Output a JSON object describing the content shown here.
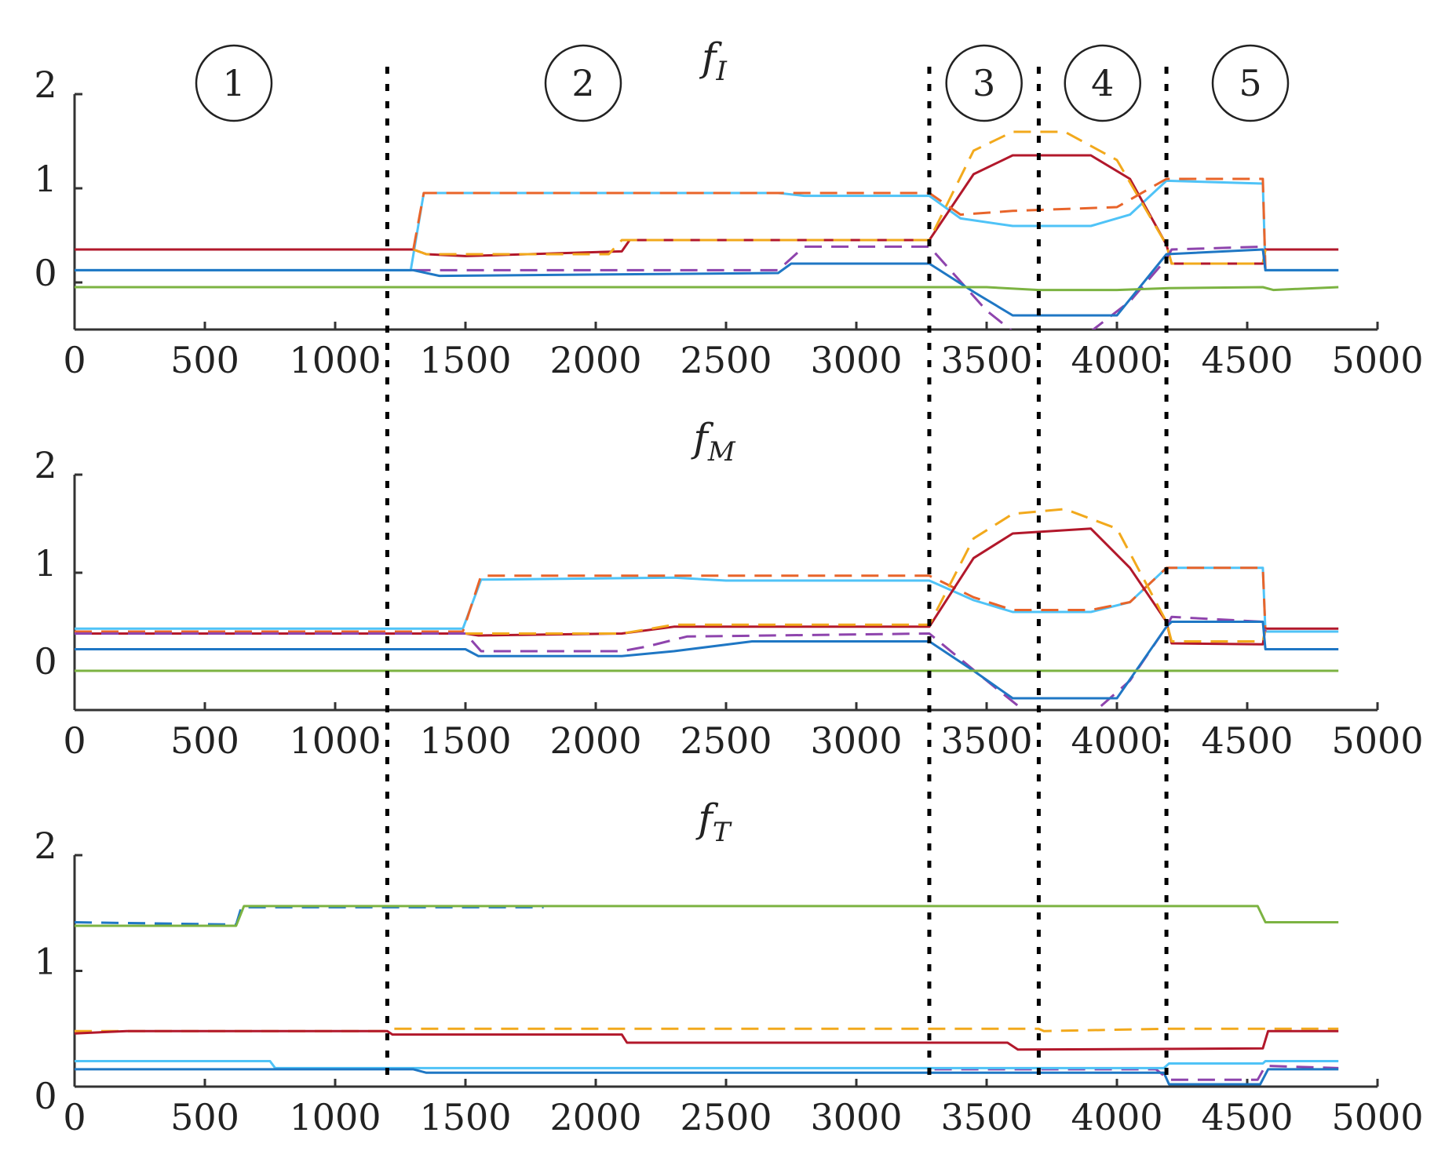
{
  "figure_title": "",
  "phase_labels": [
    "1",
    "2",
    "3",
    "4",
    "5"
  ],
  "phase_boundaries": [
    1200,
    3280,
    3700,
    4190
  ],
  "colors": {
    "blue": "#1f77c4",
    "red": "#b2182b",
    "yellow": "#f2a91c",
    "orange": "#e8642a",
    "purple": "#8e44ad",
    "cyan": "#4fc3f7",
    "green": "#7cb342",
    "axis": "#333333",
    "boundary": "#000000"
  },
  "chart_data": [
    {
      "type": "line",
      "title": "f",
      "title_sub": "I",
      "xlim": [
        0,
        5000
      ],
      "ylim": [
        -0.5,
        2
      ],
      "xticks": [
        0,
        500,
        1000,
        1500,
        2000,
        2500,
        3000,
        3500,
        4000,
        4500,
        5000
      ],
      "yticks": [
        0,
        1,
        2
      ],
      "series": [
        {
          "name": "cyan",
          "color": "cyan",
          "dashed": false,
          "points": [
            [
              0,
              0.13
            ],
            [
              1290,
              0.13
            ],
            [
              1340,
              0.95
            ],
            [
              2700,
              0.95
            ],
            [
              2800,
              0.92
            ],
            [
              3280,
              0.92
            ],
            [
              3400,
              0.68
            ],
            [
              3600,
              0.6
            ],
            [
              3900,
              0.6
            ],
            [
              4050,
              0.72
            ],
            [
              4190,
              1.08
            ],
            [
              4560,
              1.05
            ],
            [
              4570,
              0.13
            ],
            [
              4850,
              0.13
            ]
          ]
        },
        {
          "name": "red",
          "color": "red",
          "dashed": false,
          "points": [
            [
              0,
              0.35
            ],
            [
              1300,
              0.35
            ],
            [
              1350,
              0.3
            ],
            [
              1500,
              0.28
            ],
            [
              2100,
              0.33
            ],
            [
              2130,
              0.45
            ],
            [
              3280,
              0.45
            ],
            [
              3450,
              1.15
            ],
            [
              3600,
              1.35
            ],
            [
              3900,
              1.35
            ],
            [
              4050,
              1.1
            ],
            [
              4190,
              0.4
            ],
            [
              4210,
              0.2
            ],
            [
              4560,
              0.2
            ],
            [
              4570,
              0.35
            ],
            [
              4850,
              0.35
            ]
          ]
        },
        {
          "name": "yellow",
          "color": "yellow",
          "dashed": true,
          "points": [
            [
              1300,
              0.35
            ],
            [
              1350,
              0.3
            ],
            [
              2050,
              0.3
            ],
            [
              2100,
              0.45
            ],
            [
              3280,
              0.45
            ],
            [
              3450,
              1.4
            ],
            [
              3600,
              1.6
            ],
            [
              3800,
              1.6
            ],
            [
              4000,
              1.3
            ],
            [
              4190,
              0.4
            ],
            [
              4210,
              0.2
            ],
            [
              4560,
              0.2
            ],
            [
              4570,
              0.35
            ]
          ]
        },
        {
          "name": "orange",
          "color": "orange",
          "dashed": true,
          "points": [
            [
              1300,
              0.35
            ],
            [
              1340,
              0.95
            ],
            [
              2700,
              0.95
            ],
            [
              3280,
              0.95
            ],
            [
              3400,
              0.72
            ],
            [
              3600,
              0.76
            ],
            [
              3800,
              0.78
            ],
            [
              4000,
              0.8
            ],
            [
              4190,
              1.1
            ],
            [
              4560,
              1.1
            ],
            [
              4570,
              0.13
            ]
          ]
        },
        {
          "name": "purple",
          "color": "purple",
          "dashed": true,
          "points": [
            [
              1300,
              0.13
            ],
            [
              2700,
              0.13
            ],
            [
              2800,
              0.38
            ],
            [
              3280,
              0.38
            ],
            [
              3500,
              -0.3
            ],
            [
              3600,
              -0.52
            ],
            [
              3900,
              -0.52
            ],
            [
              4050,
              -0.2
            ],
            [
              4190,
              0.25
            ],
            [
              4210,
              0.35
            ],
            [
              4560,
              0.38
            ],
            [
              4570,
              0.13
            ]
          ]
        },
        {
          "name": "blue",
          "color": "blue",
          "dashed": false,
          "points": [
            [
              0,
              0.13
            ],
            [
              1300,
              0.13
            ],
            [
              1400,
              0.07
            ],
            [
              2700,
              0.1
            ],
            [
              2750,
              0.2
            ],
            [
              3280,
              0.2
            ],
            [
              3450,
              -0.1
            ],
            [
              3600,
              -0.35
            ],
            [
              4000,
              -0.35
            ],
            [
              4190,
              0.3
            ],
            [
              4560,
              0.35
            ],
            [
              4570,
              0.13
            ],
            [
              4850,
              0.13
            ]
          ]
        },
        {
          "name": "green",
          "color": "green",
          "dashed": false,
          "points": [
            [
              0,
              -0.05
            ],
            [
              3500,
              -0.05
            ],
            [
              3700,
              -0.08
            ],
            [
              4000,
              -0.08
            ],
            [
              4200,
              -0.06
            ],
            [
              4560,
              -0.05
            ],
            [
              4600,
              -0.08
            ],
            [
              4850,
              -0.05
            ]
          ]
        }
      ]
    },
    {
      "type": "line",
      "title": "f",
      "title_sub": "M",
      "xlim": [
        0,
        5000
      ],
      "ylim": [
        -0.4,
        2
      ],
      "xticks": [
        0,
        500,
        1000,
        1500,
        2000,
        2500,
        3000,
        3500,
        4000,
        4500,
        5000
      ],
      "yticks": [
        0,
        1,
        2
      ],
      "series": [
        {
          "name": "cyan",
          "color": "cyan",
          "dashed": false,
          "points": [
            [
              0,
              0.43
            ],
            [
              1490,
              0.43
            ],
            [
              1560,
              0.93
            ],
            [
              2300,
              0.95
            ],
            [
              2500,
              0.92
            ],
            [
              3280,
              0.92
            ],
            [
              3450,
              0.72
            ],
            [
              3600,
              0.6
            ],
            [
              3900,
              0.6
            ],
            [
              4050,
              0.7
            ],
            [
              4190,
              1.05
            ],
            [
              4560,
              1.05
            ],
            [
              4570,
              0.4
            ],
            [
              4850,
              0.4
            ]
          ]
        },
        {
          "name": "orange",
          "color": "orange",
          "dashed": true,
          "points": [
            [
              0,
              0.4
            ],
            [
              1490,
              0.4
            ],
            [
              1560,
              0.97
            ],
            [
              3280,
              0.97
            ],
            [
              3450,
              0.75
            ],
            [
              3600,
              0.62
            ],
            [
              3900,
              0.62
            ],
            [
              4050,
              0.7
            ],
            [
              4190,
              1.05
            ],
            [
              4560,
              1.05
            ],
            [
              4570,
              0.4
            ]
          ]
        },
        {
          "name": "red",
          "color": "red",
          "dashed": false,
          "points": [
            [
              0,
              0.38
            ],
            [
              1500,
              0.38
            ],
            [
              1550,
              0.36
            ],
            [
              2100,
              0.38
            ],
            [
              2300,
              0.45
            ],
            [
              3280,
              0.45
            ],
            [
              3450,
              1.15
            ],
            [
              3600,
              1.4
            ],
            [
              3900,
              1.45
            ],
            [
              4050,
              1.05
            ],
            [
              4190,
              0.5
            ],
            [
              4210,
              0.28
            ],
            [
              4560,
              0.27
            ],
            [
              4570,
              0.43
            ],
            [
              4850,
              0.43
            ]
          ]
        },
        {
          "name": "yellow",
          "color": "yellow",
          "dashed": true,
          "points": [
            [
              1500,
              0.38
            ],
            [
              2100,
              0.38
            ],
            [
              2300,
              0.47
            ],
            [
              3280,
              0.47
            ],
            [
              3450,
              1.35
            ],
            [
              3600,
              1.6
            ],
            [
              3800,
              1.65
            ],
            [
              4000,
              1.45
            ],
            [
              4190,
              0.5
            ],
            [
              4210,
              0.3
            ],
            [
              4560,
              0.3
            ],
            [
              4570,
              0.43
            ]
          ]
        },
        {
          "name": "purple",
          "color": "purple",
          "dashed": true,
          "points": [
            [
              0,
              0.38
            ],
            [
              1500,
              0.38
            ],
            [
              1560,
              0.2
            ],
            [
              2100,
              0.2
            ],
            [
              2200,
              0.25
            ],
            [
              2350,
              0.35
            ],
            [
              3280,
              0.38
            ],
            [
              3500,
              -0.1
            ],
            [
              3650,
              -0.42
            ],
            [
              3900,
              -0.45
            ],
            [
              4050,
              -0.1
            ],
            [
              4190,
              0.45
            ],
            [
              4210,
              0.55
            ],
            [
              4560,
              0.5
            ],
            [
              4570,
              0.4
            ]
          ]
        },
        {
          "name": "blue",
          "color": "blue",
          "dashed": false,
          "points": [
            [
              0,
              0.22
            ],
            [
              1500,
              0.22
            ],
            [
              1550,
              0.15
            ],
            [
              2100,
              0.15
            ],
            [
              2300,
              0.2
            ],
            [
              2600,
              0.3
            ],
            [
              3280,
              0.3
            ],
            [
              3450,
              0.0
            ],
            [
              3600,
              -0.28
            ],
            [
              4000,
              -0.28
            ],
            [
              4190,
              0.45
            ],
            [
              4210,
              0.5
            ],
            [
              4560,
              0.5
            ],
            [
              4570,
              0.22
            ],
            [
              4850,
              0.22
            ]
          ]
        },
        {
          "name": "green",
          "color": "green",
          "dashed": false,
          "points": [
            [
              0,
              0.0
            ],
            [
              4850,
              0.0
            ]
          ]
        }
      ]
    },
    {
      "type": "line",
      "title": "f",
      "title_sub": "T",
      "xlim": [
        0,
        5000
      ],
      "ylim": [
        0,
        2
      ],
      "xticks": [
        0,
        500,
        1000,
        1500,
        2000,
        2500,
        3000,
        3500,
        4000,
        4500,
        5000
      ],
      "yticks": [
        0,
        1,
        2
      ],
      "series": [
        {
          "name": "blue-dashed",
          "color": "blue",
          "dashed": true,
          "points": [
            [
              0,
              1.42
            ],
            [
              620,
              1.4
            ],
            [
              640,
              1.55
            ],
            [
              1800,
              1.55
            ]
          ]
        },
        {
          "name": "green",
          "color": "green",
          "dashed": false,
          "points": [
            [
              0,
              1.39
            ],
            [
              620,
              1.39
            ],
            [
              650,
              1.56
            ],
            [
              4540,
              1.56
            ],
            [
              4570,
              1.42
            ],
            [
              4850,
              1.42
            ]
          ]
        },
        {
          "name": "yellow",
          "color": "yellow",
          "dashed": true,
          "points": [
            [
              0,
              0.48
            ],
            [
              1200,
              0.48
            ],
            [
              1220,
              0.5
            ],
            [
              3700,
              0.5
            ],
            [
              3720,
              0.48
            ],
            [
              4190,
              0.5
            ],
            [
              4560,
              0.5
            ],
            [
              4850,
              0.5
            ]
          ]
        },
        {
          "name": "red",
          "color": "red",
          "dashed": false,
          "points": [
            [
              0,
              0.46
            ],
            [
              200,
              0.48
            ],
            [
              1200,
              0.48
            ],
            [
              1220,
              0.45
            ],
            [
              2100,
              0.45
            ],
            [
              2120,
              0.38
            ],
            [
              3580,
              0.38
            ],
            [
              3620,
              0.32
            ],
            [
              4560,
              0.33
            ],
            [
              4580,
              0.48
            ],
            [
              4850,
              0.48
            ]
          ]
        },
        {
          "name": "purple",
          "color": "purple",
          "dashed": true,
          "points": [
            [
              3300,
              0.15
            ],
            [
              4150,
              0.15
            ],
            [
              4200,
              0.06
            ],
            [
              4540,
              0.06
            ],
            [
              4570,
              0.18
            ],
            [
              4850,
              0.16
            ]
          ]
        },
        {
          "name": "cyan",
          "color": "cyan",
          "dashed": false,
          "points": [
            [
              0,
              0.22
            ],
            [
              750,
              0.22
            ],
            [
              770,
              0.16
            ],
            [
              4180,
              0.16
            ],
            [
              4200,
              0.2
            ],
            [
              4560,
              0.2
            ],
            [
              4570,
              0.22
            ],
            [
              4850,
              0.22
            ]
          ]
        },
        {
          "name": "blue",
          "color": "blue",
          "dashed": false,
          "points": [
            [
              0,
              0.15
            ],
            [
              1300,
              0.15
            ],
            [
              1350,
              0.12
            ],
            [
              4180,
              0.12
            ],
            [
              4200,
              0.02
            ],
            [
              4550,
              0.02
            ],
            [
              4580,
              0.15
            ],
            [
              4850,
              0.15
            ]
          ]
        }
      ]
    }
  ]
}
